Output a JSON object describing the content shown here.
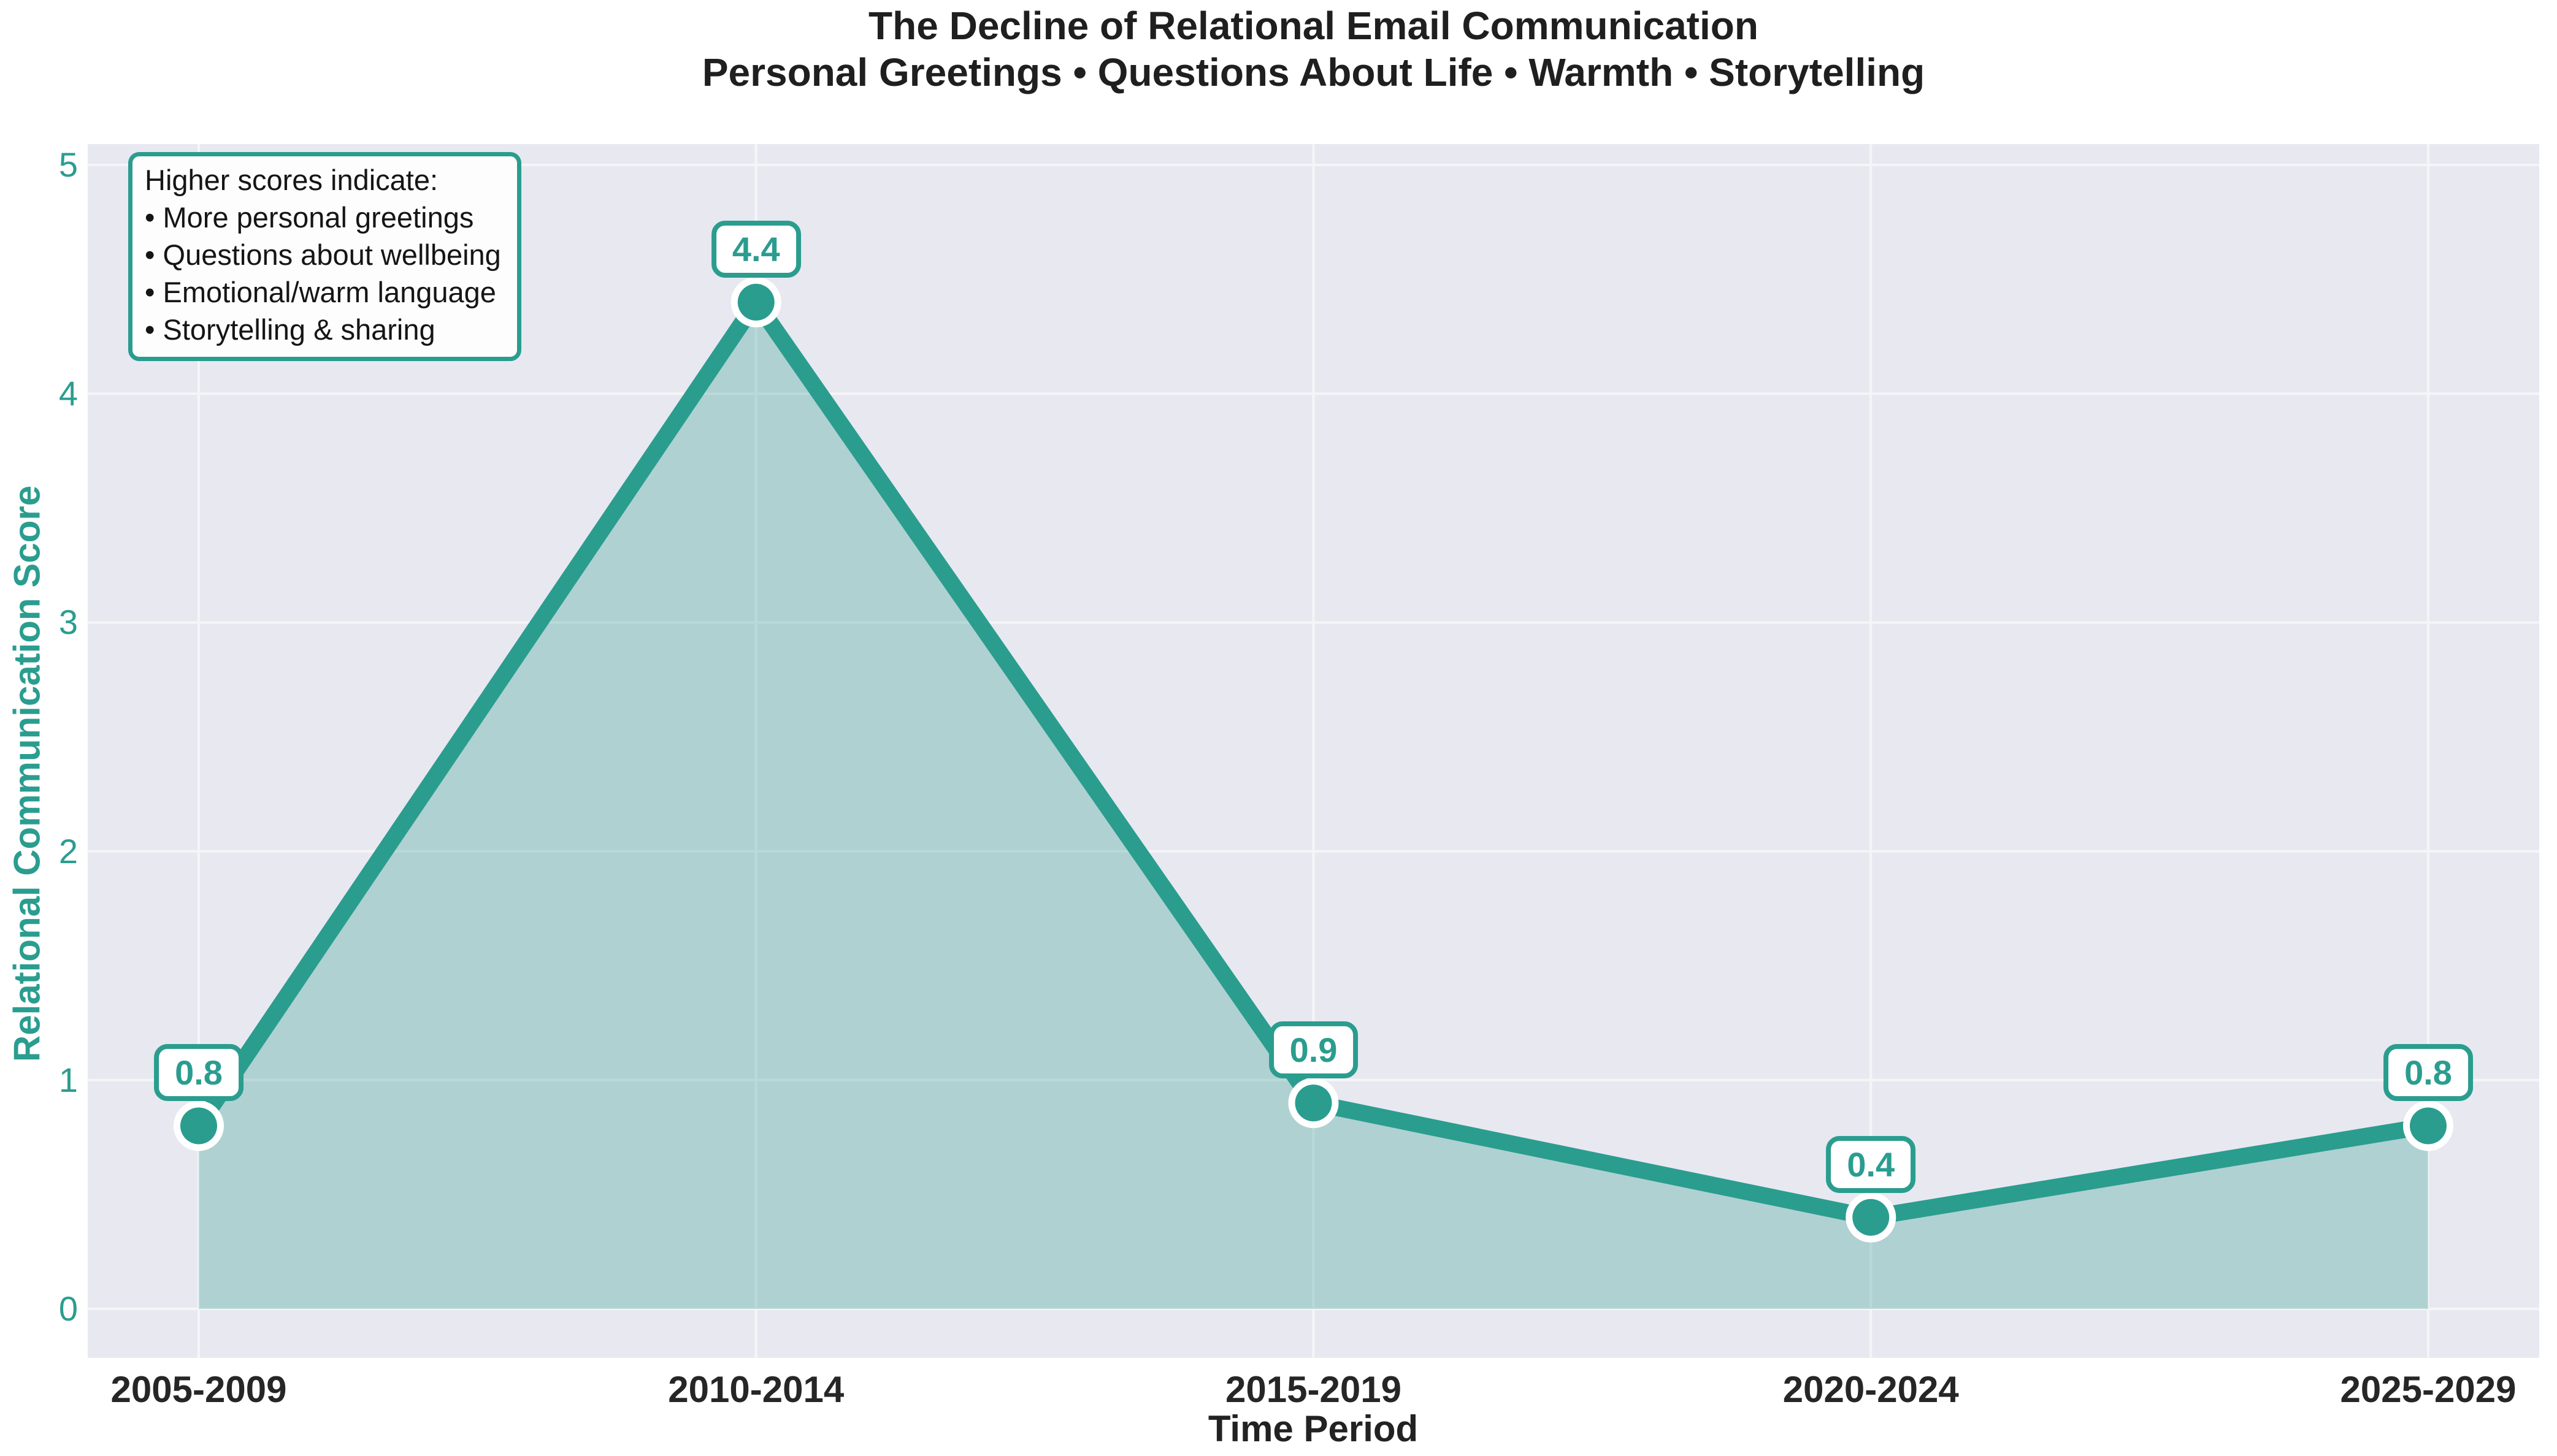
{
  "header": {
    "title": "The Decline of Relational Email Communication",
    "subtitle": "Personal Greetings • Questions About Life • Warmth • Storytelling"
  },
  "axes": {
    "x_label": "Time Period",
    "y_label": "Relational Communication Score",
    "y_ticks": [
      "0",
      "1",
      "2",
      "3",
      "4",
      "5"
    ]
  },
  "annotation": {
    "title": "Higher scores indicate:",
    "items": [
      "• More personal greetings",
      "• Questions about wellbeing",
      "• Emotional/warm language",
      "• Storytelling & sharing"
    ]
  },
  "chart_data": {
    "type": "area",
    "title": "The Decline of Relational Email Communication",
    "subtitle": "Personal Greetings • Questions About Life • Warmth • Storytelling",
    "categories": [
      "2005-2009",
      "2010-2014",
      "2015-2019",
      "2020-2024",
      "2025-2029"
    ],
    "values": [
      0.8,
      4.4,
      0.9,
      0.4,
      0.8
    ],
    "point_labels": [
      "0.8",
      "4.4",
      "0.9",
      "0.4",
      "0.8"
    ],
    "xlabel": "Time Period",
    "ylabel": "Relational Communication Score",
    "ylim": [
      0,
      5
    ],
    "y_tick_values": [
      0,
      1,
      2,
      3,
      4,
      5
    ],
    "grid": true,
    "legend": "none"
  },
  "colors": {
    "accent": "#2a9d8f",
    "area_fill_opacity": 0.3,
    "plot_background": "#e8e8f0",
    "grid": "#f5f5f8",
    "tick_text_dark": "#262626",
    "label_box_background": "#ffffff"
  }
}
